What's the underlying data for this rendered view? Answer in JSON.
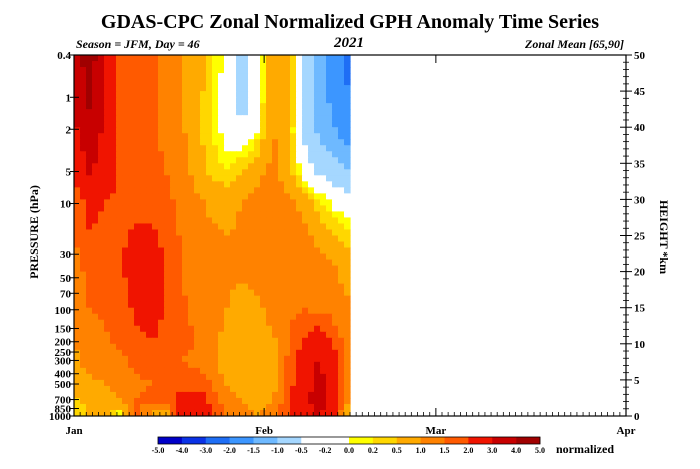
{
  "chart_data": {
    "type": "heatmap",
    "title": "GDAS-CPC Zonal Normalized GPH Anomaly Time Series",
    "season_label": "Season = JFM, Day = 46",
    "year": "2021",
    "region_label": "Zonal Mean [65,90]",
    "ylabel_left": "PRESSURE (hPa)",
    "ylabel_right": "HEIGHT *km",
    "colorbar_unit": "normalized",
    "x_ticks": [
      "Jan",
      "Feb",
      "Mar",
      "Apr"
    ],
    "x_tick_days": [
      1,
      32,
      60,
      91
    ],
    "x_range_days": [
      1,
      91
    ],
    "data_end_day": 46,
    "pressure_ticks": [
      0.4,
      1,
      2,
      5,
      10,
      30,
      50,
      70,
      100,
      150,
      200,
      250,
      300,
      400,
      500,
      700,
      850,
      1000
    ],
    "pressure_tick_labels": [
      "0.4",
      "1",
      "2",
      "5",
      "10",
      "30",
      "50",
      "70",
      "100",
      "150",
      "200",
      "250",
      "300",
      "400",
      "500",
      "700",
      "850",
      "1000"
    ],
    "pressure_range": [
      1000,
      0.4
    ],
    "y_scale": "log",
    "height_ticks_km": [
      0,
      5,
      10,
      15,
      20,
      25,
      30,
      35,
      40,
      45,
      50
    ],
    "height_range_km": [
      0,
      50
    ],
    "colorbar_levels": [
      "-5.0",
      "-4.0",
      "-3.0",
      "-2.0",
      "-1.5",
      "-1.0",
      "-0.5",
      "-0.2",
      "0.0",
      "0.2",
      "0.5",
      "1.0",
      "1.5",
      "2.0",
      "3.0",
      "4.0",
      "5.0"
    ],
    "colorbar_colors": [
      "#0000c8",
      "#0a32e6",
      "#1e6ef5",
      "#3c96ff",
      "#6eb9ff",
      "#a5d7ff",
      "#ffffff",
      "#ffffff",
      "#ffff00",
      "#ffd700",
      "#ffaa00",
      "#ff8200",
      "#ff5a00",
      "#f01400",
      "#c80000",
      "#a00000"
    ],
    "sample_times_days": [
      1,
      3.5,
      6,
      8.5,
      11,
      13.5,
      16,
      18.5,
      21,
      23.5,
      26,
      28.5,
      31,
      33.5,
      36,
      38.5,
      41,
      43.5,
      46
    ],
    "sample_pressures_hpa": [
      0.4,
      1,
      2,
      5,
      10,
      30,
      50,
      100,
      200,
      300,
      500,
      700,
      1000
    ],
    "values": [
      [
        3.5,
        4.5,
        3.2,
        1.8,
        1.7,
        1.6,
        1.3,
        1.0,
        0.8,
        0.2,
        -0.1,
        -0.8,
        -0.2,
        0.8,
        0.6,
        -0.5,
        -1.3,
        -1.8,
        -2.2
      ],
      [
        3.2,
        4.2,
        3.0,
        1.8,
        1.8,
        1.6,
        1.3,
        1.0,
        0.7,
        0.2,
        -0.2,
        -0.7,
        -0.2,
        0.9,
        0.6,
        -0.5,
        -1.2,
        -1.7,
        -2.0
      ],
      [
        2.8,
        3.8,
        2.8,
        1.8,
        1.8,
        1.6,
        1.4,
        1.1,
        0.6,
        0.2,
        -0.2,
        -0.5,
        0.0,
        1.0,
        0.5,
        -0.6,
        -1.1,
        -1.5,
        -1.8
      ],
      [
        2.0,
        3.2,
        2.4,
        1.9,
        1.8,
        1.6,
        1.5,
        1.2,
        0.8,
        0.4,
        0.2,
        0.5,
        0.8,
        1.2,
        0.6,
        -0.2,
        -0.6,
        -0.8,
        -1.0
      ],
      [
        1.6,
        2.2,
        2.0,
        1.9,
        1.8,
        1.7,
        1.6,
        1.4,
        1.1,
        0.9,
        0.8,
        1.0,
        1.2,
        1.4,
        1.2,
        0.8,
        0.3,
        -0.1,
        -0.3
      ],
      [
        1.4,
        1.8,
        1.8,
        1.9,
        2.3,
        2.6,
        1.8,
        1.5,
        1.3,
        1.2,
        1.1,
        1.2,
        1.3,
        1.5,
        1.4,
        1.3,
        1.1,
        0.9,
        0.5
      ],
      [
        1.3,
        1.6,
        1.7,
        1.8,
        2.4,
        3.1,
        2.0,
        1.5,
        1.3,
        1.2,
        1.1,
        1.0,
        1.2,
        1.4,
        1.5,
        1.4,
        1.3,
        1.1,
        0.8
      ],
      [
        1.2,
        1.5,
        1.6,
        1.7,
        2.1,
        2.4,
        1.9,
        1.6,
        1.4,
        1.2,
        1.0,
        0.8,
        0.9,
        1.2,
        1.4,
        1.5,
        1.4,
        1.3,
        1.1
      ],
      [
        1.0,
        1.3,
        1.4,
        1.6,
        1.8,
        2.0,
        1.8,
        1.6,
        1.5,
        1.2,
        0.8,
        0.7,
        0.7,
        0.9,
        1.5,
        2.1,
        2.6,
        1.8,
        1.2
      ],
      [
        0.9,
        1.2,
        1.3,
        1.4,
        1.6,
        1.7,
        1.6,
        1.5,
        1.4,
        1.1,
        0.7,
        0.6,
        0.6,
        0.8,
        1.6,
        2.4,
        3.1,
        2.2,
        1.2
      ],
      [
        0.6,
        0.9,
        1.0,
        1.2,
        1.4,
        1.5,
        1.6,
        1.7,
        1.8,
        1.5,
        0.9,
        0.7,
        0.6,
        0.8,
        1.7,
        2.6,
        3.3,
        2.4,
        1.0
      ],
      [
        0.4,
        0.6,
        0.8,
        1.0,
        1.5,
        1.7,
        1.9,
        2.2,
        2.4,
        1.8,
        1.2,
        0.9,
        0.7,
        1.0,
        1.9,
        2.8,
        3.6,
        2.6,
        0.8
      ],
      [
        0.3,
        0.5,
        0.6,
        -0.1,
        1.6,
        1.0,
        0.4,
        2.6,
        3.0,
        2.0,
        1.5,
        1.3,
        1.0,
        1.2,
        2.0,
        2.6,
        3.0,
        2.2,
        0.3
      ]
    ]
  }
}
